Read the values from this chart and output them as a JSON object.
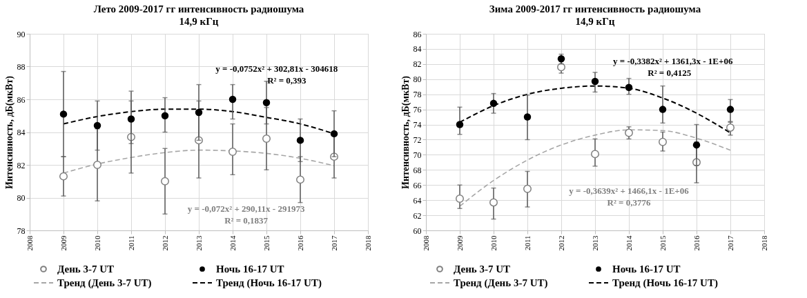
{
  "chart_data": [
    {
      "type": "scatter",
      "title": "Лето 2009-2017 гг интенсивность радиошума",
      "subtitle": "14,9 кГц",
      "ylabel": "Интенсивность,  дБ(мкВт)",
      "x": [
        2009,
        2010,
        2011,
        2012,
        2013,
        2014,
        2015,
        2016,
        2017
      ],
      "xlim": [
        2008,
        2018
      ],
      "xticks": [
        2008,
        2009,
        2010,
        2011,
        2012,
        2013,
        2014,
        2015,
        2016,
        2017,
        2018
      ],
      "ylim": [
        78,
        90
      ],
      "yticks": [
        78,
        80,
        82,
        84,
        86,
        88,
        90
      ],
      "grid": true,
      "legend": "bottom",
      "series": [
        {
          "name": "День 3-7 UT",
          "marker": "circle",
          "color": "#808080",
          "values": [
            81.3,
            82.0,
            83.7,
            81.0,
            83.5,
            82.8,
            83.6,
            81.1,
            82.5
          ],
          "errors": [
            [
              80.1,
              82.5
            ],
            [
              79.8,
              84.2
            ],
            [
              81.5,
              85.9
            ],
            [
              79.0,
              83.0
            ],
            [
              81.2,
              85.9
            ],
            [
              81.4,
              84.5
            ],
            [
              81.7,
              85.5
            ],
            [
              79.7,
              82.5
            ],
            [
              81.2,
              83.8
            ]
          ]
        },
        {
          "name": "Ночь 16-17 UT",
          "marker": "circle",
          "color": "#000000",
          "values": [
            85.1,
            84.4,
            84.8,
            85.0,
            85.2,
            86.0,
            85.8,
            83.5,
            83.9
          ],
          "errors": [
            [
              82.5,
              87.7
            ],
            [
              82.9,
              85.9
            ],
            [
              83.3,
              86.5
            ],
            [
              84.0,
              86.1
            ],
            [
              83.5,
              86.9
            ],
            [
              84.8,
              86.9
            ],
            [
              84.5,
              87.1
            ],
            [
              82.2,
              84.8
            ],
            [
              82.5,
              85.3
            ]
          ]
        },
        {
          "name": "Тренд (День 3-7 UT)",
          "type": "line",
          "line_style": "dashed",
          "color": "#a6a6a6",
          "values": [
            81.5,
            82.05,
            82.45,
            82.75,
            82.9,
            82.85,
            82.7,
            82.4,
            81.95
          ]
        },
        {
          "name": "Тренд (Ночь 16-17 UT)",
          "type": "line",
          "line_style": "dashed",
          "color": "#000000",
          "values": [
            84.5,
            84.95,
            85.25,
            85.4,
            85.4,
            85.25,
            84.9,
            84.5,
            83.9
          ]
        }
      ],
      "annotations": [
        "y = -0,0752x² + 302,81x - 304618",
        "R² = 0,393",
        "y = -0,072x² + 290,11x - 291973",
        "R² = 0,1837"
      ]
    },
    {
      "type": "scatter",
      "title": "Зима 2009-2017 гг интенсивность радиошума",
      "subtitle": "14,9 кГц",
      "ylabel": "Интенсивность,  дБ(мкВт)",
      "x": [
        2009,
        2010,
        2011,
        2012,
        2013,
        2014,
        2015,
        2016,
        2017
      ],
      "xlim": [
        2008,
        2018
      ],
      "xticks": [
        2008,
        2009,
        2010,
        2011,
        2012,
        2013,
        2014,
        2015,
        2016,
        2017,
        2018
      ],
      "ylim": [
        60,
        86
      ],
      "yticks": [
        60,
        62,
        64,
        66,
        68,
        70,
        72,
        74,
        76,
        78,
        80,
        82,
        84,
        86
      ],
      "grid": true,
      "legend": "bottom",
      "series": [
        {
          "name": "День 3-7 UT",
          "marker": "circle",
          "color": "#808080",
          "values": [
            64.2,
            63.7,
            65.5,
            81.6,
            70.1,
            72.9,
            71.7,
            69.0,
            73.6
          ],
          "errors": [
            [
              62.9,
              66.0
            ],
            [
              61.5,
              65.6
            ],
            [
              63.1,
              67.8
            ],
            [
              80.8,
              82.4
            ],
            [
              68.5,
              72.1
            ],
            [
              72.1,
              73.7
            ],
            [
              70.5,
              73.0
            ],
            [
              66.3,
              71.7
            ],
            [
              72.6,
              74.3
            ]
          ]
        },
        {
          "name": "Ночь 16-17 UT",
          "marker": "circle",
          "color": "#000000",
          "values": [
            74.0,
            76.8,
            75.0,
            82.7,
            79.7,
            78.9,
            76.0,
            71.3,
            76.0
          ],
          "errors": [
            [
              72.7,
              76.3
            ],
            [
              75.5,
              78.1
            ],
            [
              72.0,
              77.9
            ],
            [
              82.0,
              83.3
            ],
            [
              78.3,
              80.9
            ],
            [
              78.0,
              80.1
            ],
            [
              74.2,
              79.1
            ],
            [
              68.6,
              74.0
            ],
            [
              74.4,
              77.3
            ]
          ]
        },
        {
          "name": "Тренд (День 3-7 UT)",
          "type": "line",
          "line_style": "dashed",
          "color": "#a6a6a6",
          "values": [
            63.2,
            66.6,
            69.3,
            71.3,
            72.6,
            73.3,
            73.2,
            72.2,
            70.6
          ]
        },
        {
          "name": "Тренд (Ночь 16-17 UT)",
          "type": "line",
          "line_style": "dashed",
          "color": "#000000",
          "values": [
            74.3,
            76.5,
            78.0,
            78.8,
            79.1,
            78.8,
            77.5,
            75.5,
            72.9
          ]
        }
      ],
      "annotations": [
        "y = -0,3382x² + 1361,3x - 1E+06",
        "R² = 0,4125",
        "y = -0,3639x² + 1466,1x - 1E+06",
        "R² = 0,3776"
      ]
    }
  ]
}
